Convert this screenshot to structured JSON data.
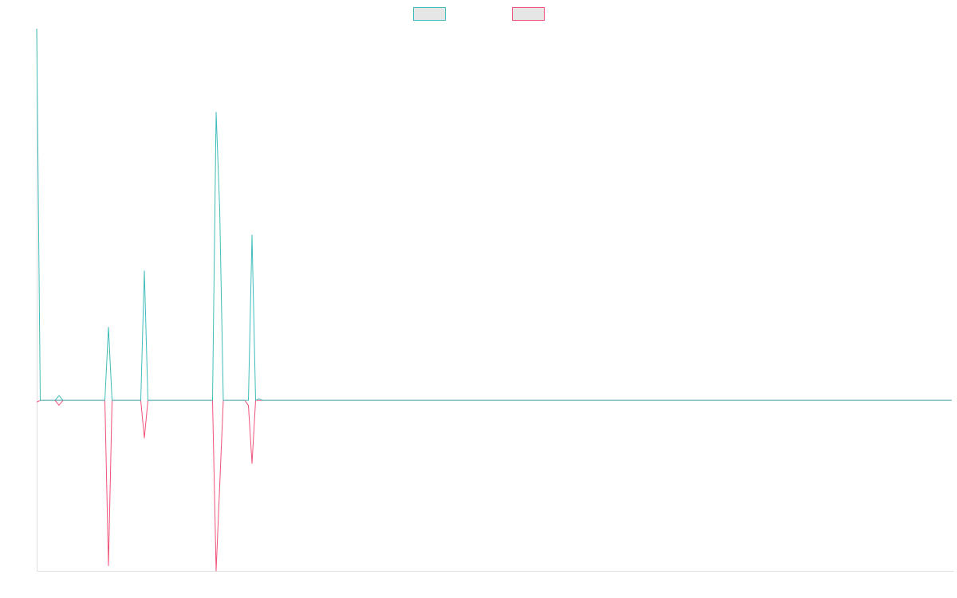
{
  "chart_data": {
    "type": "line",
    "title": "",
    "xlabel": "",
    "ylabel": "",
    "grid": false,
    "legend_position": "top-center",
    "x_count": 256,
    "ylim": [
      -100,
      218
    ],
    "zero_line": true,
    "colors": {
      "series_1": "#3fbdbb",
      "series_2": "#f0527a",
      "legend_fill": "#e6e6e6",
      "axis": "#e1e1e1"
    },
    "series": [
      {
        "key": "series_1",
        "points": [
          [
            0,
            218
          ],
          [
            1,
            0
          ],
          [
            2,
            0
          ],
          [
            3,
            0
          ],
          [
            4,
            0
          ],
          [
            5,
            0
          ],
          [
            6,
            0
          ],
          [
            7,
            0
          ],
          [
            8,
            0
          ],
          [
            9,
            0
          ],
          [
            10,
            0
          ],
          [
            11,
            0
          ],
          [
            12,
            0
          ],
          [
            13,
            0
          ],
          [
            14,
            0
          ],
          [
            15,
            0
          ],
          [
            16,
            0
          ],
          [
            17,
            0
          ],
          [
            18,
            0
          ],
          [
            19,
            0
          ],
          [
            20,
            43
          ],
          [
            21,
            0
          ],
          [
            22,
            0
          ],
          [
            23,
            0
          ],
          [
            24,
            0
          ],
          [
            25,
            0
          ],
          [
            26,
            0
          ],
          [
            27,
            0
          ],
          [
            28,
            0
          ],
          [
            29,
            0
          ],
          [
            30,
            76
          ],
          [
            31,
            0
          ],
          [
            32,
            0
          ],
          [
            33,
            0
          ],
          [
            34,
            0
          ],
          [
            35,
            0
          ],
          [
            36,
            0
          ],
          [
            37,
            0
          ],
          [
            38,
            0
          ],
          [
            39,
            0
          ],
          [
            40,
            0
          ],
          [
            41,
            0
          ],
          [
            42,
            0
          ],
          [
            43,
            0
          ],
          [
            44,
            0
          ],
          [
            45,
            0
          ],
          [
            46,
            0
          ],
          [
            47,
            0
          ],
          [
            48,
            0
          ],
          [
            49,
            0
          ],
          [
            50,
            169
          ],
          [
            51,
            112
          ],
          [
            52,
            0
          ],
          [
            53,
            0
          ],
          [
            54,
            0
          ],
          [
            55,
            0
          ],
          [
            56,
            0
          ],
          [
            57,
            0
          ],
          [
            58,
            0
          ],
          [
            59,
            0
          ],
          [
            60,
            97
          ],
          [
            61,
            0
          ],
          [
            62,
            1
          ],
          [
            63,
            0
          ],
          [
            255,
            0
          ]
        ]
      },
      {
        "key": "series_2",
        "points": [
          [
            0,
            -1
          ],
          [
            1,
            0
          ],
          [
            2,
            0
          ],
          [
            3,
            0
          ],
          [
            4,
            0
          ],
          [
            5,
            0
          ],
          [
            6,
            0
          ],
          [
            7,
            0
          ],
          [
            8,
            0
          ],
          [
            9,
            0
          ],
          [
            10,
            0
          ],
          [
            11,
            0
          ],
          [
            12,
            0
          ],
          [
            13,
            0
          ],
          [
            14,
            0
          ],
          [
            15,
            0
          ],
          [
            16,
            0
          ],
          [
            17,
            0
          ],
          [
            18,
            0
          ],
          [
            19,
            0
          ],
          [
            20,
            -97
          ],
          [
            21,
            0
          ],
          [
            22,
            0
          ],
          [
            23,
            0
          ],
          [
            24,
            0
          ],
          [
            25,
            0
          ],
          [
            26,
            0
          ],
          [
            27,
            0
          ],
          [
            28,
            0
          ],
          [
            29,
            0
          ],
          [
            30,
            -22
          ],
          [
            31,
            0
          ],
          [
            32,
            0
          ],
          [
            33,
            0
          ],
          [
            34,
            0
          ],
          [
            35,
            0
          ],
          [
            36,
            0
          ],
          [
            37,
            0
          ],
          [
            38,
            0
          ],
          [
            39,
            0
          ],
          [
            40,
            0
          ],
          [
            41,
            0
          ],
          [
            42,
            0
          ],
          [
            43,
            0
          ],
          [
            44,
            0
          ],
          [
            45,
            0
          ],
          [
            46,
            0
          ],
          [
            47,
            0
          ],
          [
            48,
            0
          ],
          [
            49,
            0
          ],
          [
            50,
            -100
          ],
          [
            51,
            -50
          ],
          [
            52,
            0
          ],
          [
            53,
            0
          ],
          [
            54,
            0
          ],
          [
            55,
            0
          ],
          [
            56,
            0
          ],
          [
            57,
            0
          ],
          [
            58,
            0
          ],
          [
            59,
            -3
          ],
          [
            60,
            -37
          ],
          [
            61,
            0
          ],
          [
            62,
            0
          ],
          [
            63,
            0
          ],
          [
            255,
            0
          ]
        ]
      }
    ],
    "markers": [
      {
        "series": "series_1",
        "x": 6,
        "y": 1,
        "shape": "diamond-half-top"
      },
      {
        "series": "series_2",
        "x": 6,
        "y": -1,
        "shape": "diamond-half-bottom"
      }
    ],
    "legend": [
      {
        "series": "series_1",
        "label": ""
      },
      {
        "series": "series_2",
        "label": ""
      }
    ]
  }
}
